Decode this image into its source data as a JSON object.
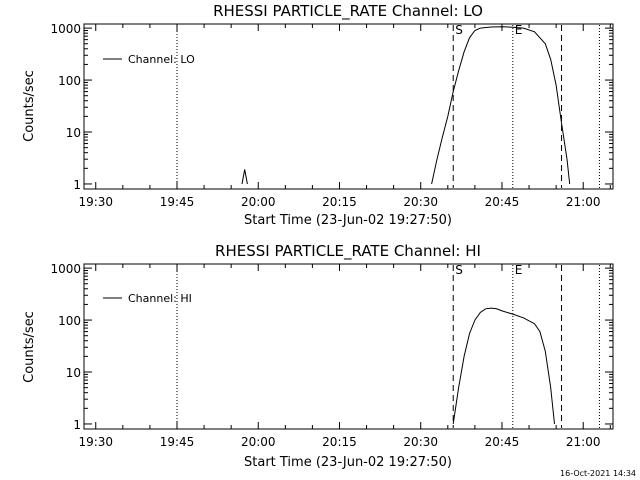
{
  "timestamp": "16-Oct-2021 14:34",
  "chart_data": [
    {
      "type": "line",
      "title": "RHESSI PARTICLE_RATE Channel: LO",
      "xlabel": "Start Time (23-Jun-02 19:27:50)",
      "ylabel": "Counts/sec",
      "y_scale": "log",
      "ylim": [
        0.8,
        1200
      ],
      "x_start": "19:27:50",
      "xlim_minutes_after_1930": [
        -2.17,
        95.5
      ],
      "x_tick_labels": [
        "19:30",
        "19:45",
        "20:00",
        "20:15",
        "20:30",
        "20:45",
        "21:00"
      ],
      "y_tick_labels": [
        "1",
        "10",
        "100",
        "1000"
      ],
      "legend": {
        "label": "Channel: LO",
        "position": "top-left"
      },
      "markers": [
        {
          "label": "S",
          "time": "20:36",
          "style": "dashed"
        },
        {
          "label": "E",
          "time": "20:47",
          "style": "dotted"
        }
      ],
      "vertical_lines": [
        {
          "time": "19:45",
          "style": "dotted"
        },
        {
          "time": "20:47",
          "style": "dotted"
        },
        {
          "time": "20:56",
          "style": "dashed"
        },
        {
          "time": "21:03",
          "style": "dotted"
        }
      ],
      "series": [
        {
          "name": "Channel: LO",
          "points": [
            [
              "19:57",
              1
            ],
            [
              "19:57.5",
              1.9
            ],
            [
              "19:58",
              1
            ],
            [
              "20:32",
              1
            ],
            [
              "20:33",
              3
            ],
            [
              "20:34",
              8
            ],
            [
              "20:35",
              20
            ],
            [
              "20:36",
              60
            ],
            [
              "20:37",
              150
            ],
            [
              "20:38",
              350
            ],
            [
              "20:39",
              650
            ],
            [
              "20:40",
              900
            ],
            [
              "20:41",
              1000
            ],
            [
              "20:43",
              1050
            ],
            [
              "20:45",
              1060
            ],
            [
              "20:47",
              1040
            ],
            [
              "20:49",
              1000
            ],
            [
              "20:51",
              850
            ],
            [
              "20:53",
              500
            ],
            [
              "20:54",
              250
            ],
            [
              "20:55",
              80
            ],
            [
              "20:56",
              15
            ],
            [
              "20:57",
              3
            ],
            [
              "20:57.5",
              1
            ]
          ]
        }
      ]
    },
    {
      "type": "line",
      "title": "RHESSI PARTICLE_RATE Channel: HI",
      "xlabel": "Start Time (23-Jun-02 19:27:50)",
      "ylabel": "Counts/sec",
      "y_scale": "log",
      "ylim": [
        0.8,
        1200
      ],
      "x_start": "19:27:50",
      "xlim_minutes_after_1930": [
        -2.17,
        95.5
      ],
      "x_tick_labels": [
        "19:30",
        "19:45",
        "20:00",
        "20:15",
        "20:30",
        "20:45",
        "21:00"
      ],
      "y_tick_labels": [
        "1",
        "10",
        "100",
        "1000"
      ],
      "legend": {
        "label": "Channel: HI",
        "position": "top-left"
      },
      "markers": [
        {
          "label": "S",
          "time": "20:36",
          "style": "dashed"
        },
        {
          "label": "E",
          "time": "20:47",
          "style": "dotted"
        }
      ],
      "vertical_lines": [
        {
          "time": "19:45",
          "style": "dotted"
        },
        {
          "time": "20:47",
          "style": "dotted"
        },
        {
          "time": "20:56",
          "style": "dashed"
        },
        {
          "time": "21:03",
          "style": "dotted"
        }
      ],
      "series": [
        {
          "name": "Channel: HI",
          "points": [
            [
              "20:36",
              1
            ],
            [
              "20:37",
              5
            ],
            [
              "20:38",
              20
            ],
            [
              "20:39",
              55
            ],
            [
              "20:40",
              100
            ],
            [
              "20:41",
              140
            ],
            [
              "20:42",
              165
            ],
            [
              "20:43",
              170
            ],
            [
              "20:44",
              165
            ],
            [
              "20:45",
              150
            ],
            [
              "20:47",
              130
            ],
            [
              "20:49",
              110
            ],
            [
              "20:51",
              85
            ],
            [
              "20:52",
              60
            ],
            [
              "20:53",
              25
            ],
            [
              "20:54",
              5
            ],
            [
              "20:54.7",
              1
            ]
          ]
        }
      ]
    }
  ]
}
